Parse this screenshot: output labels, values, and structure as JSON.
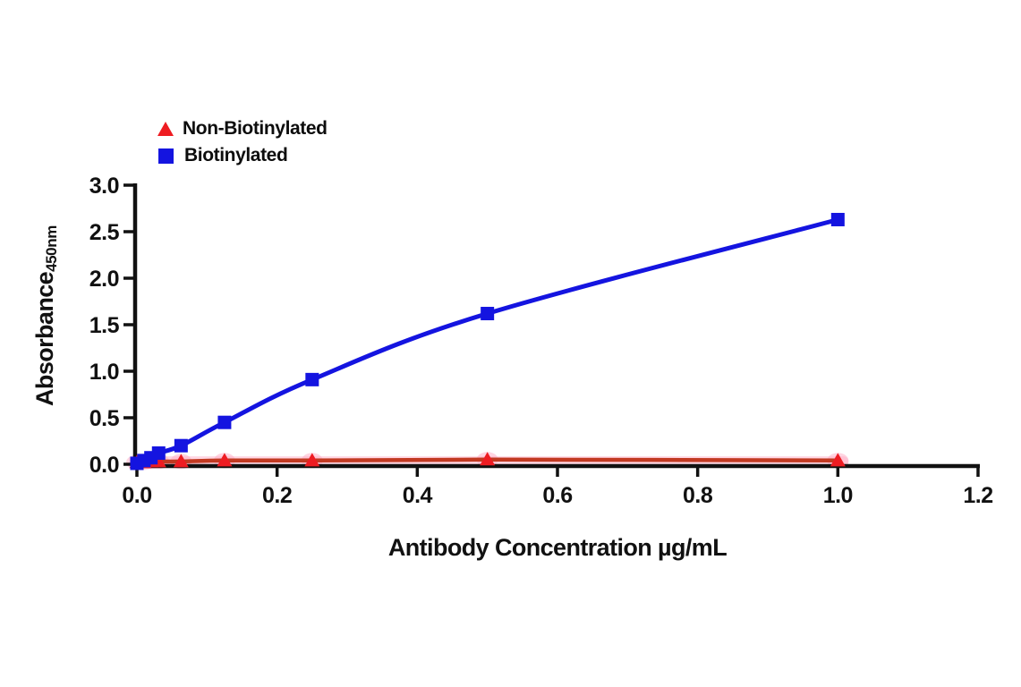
{
  "chart_data": {
    "type": "line",
    "title": "",
    "xlabel": "Antibody Concentration µg/mL",
    "ylabel": "Absorbance",
    "ylabel_sub": "450nm",
    "xlim": [
      0,
      1.2
    ],
    "ylim": [
      0,
      3.0
    ],
    "x_ticks": [
      "0.0",
      "0.2",
      "0.4",
      "0.6",
      "0.8",
      "1.0",
      "1.2"
    ],
    "y_ticks": [
      "0.0",
      "0.5",
      "1.0",
      "1.5",
      "2.0",
      "2.5",
      "3.0"
    ],
    "grid": false,
    "legend_position": "top-left",
    "axis_color": "#111111",
    "series": [
      {
        "name": "Non-Biotinylated",
        "marker": "triangle",
        "marker_color": "#ee1c22",
        "line_color": "#c23a22",
        "band_color": "#ffb0c8",
        "x": [
          0,
          0.01,
          0.02,
          0.031,
          0.063,
          0.125,
          0.25,
          0.5,
          1.0
        ],
        "y": [
          0.02,
          0.02,
          0.03,
          0.03,
          0.03,
          0.04,
          0.04,
          0.05,
          0.04
        ]
      },
      {
        "name": "Biotinylated",
        "marker": "square",
        "marker_color": "#1414e0",
        "line_color": "#1414e0",
        "x": [
          0,
          0.01,
          0.02,
          0.031,
          0.063,
          0.125,
          0.25,
          0.5,
          1.0
        ],
        "y": [
          0.01,
          0.04,
          0.07,
          0.12,
          0.2,
          0.45,
          0.91,
          1.62,
          2.63
        ]
      }
    ]
  }
}
